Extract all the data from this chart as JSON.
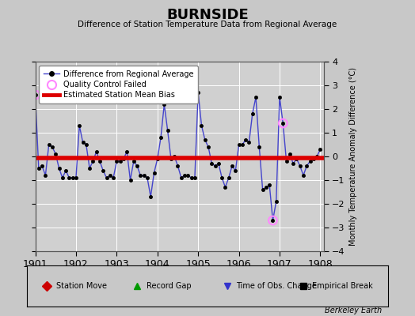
{
  "title": "BURNSIDE",
  "subtitle": "Difference of Station Temperature Data from Regional Average",
  "ylabel_right": "Monthly Temperature Anomaly Difference (°C)",
  "xlim": [
    1901.0,
    1908.083
  ],
  "ylim": [
    -4,
    4
  ],
  "yticks": [
    -4,
    -3,
    -2,
    -1,
    0,
    1,
    2,
    3,
    4
  ],
  "xticks": [
    1901,
    1902,
    1903,
    1904,
    1905,
    1906,
    1907,
    1908
  ],
  "background_color": "#c8c8c8",
  "plot_bg_color": "#d0d0d0",
  "mean_bias": -0.05,
  "line_color": "#4444cc",
  "dot_color": "#000000",
  "bias_color": "#dd0000",
  "qc_fail_color": "#ff88ff",
  "watermark": "Berkeley Earth",
  "times": [
    1901.0,
    1901.0833,
    1901.1667,
    1901.25,
    1901.3333,
    1901.4167,
    1901.5,
    1901.5833,
    1901.6667,
    1901.75,
    1901.8333,
    1901.9167,
    1902.0,
    1902.0833,
    1902.1667,
    1902.25,
    1902.3333,
    1902.4167,
    1902.5,
    1902.5833,
    1902.6667,
    1902.75,
    1902.8333,
    1902.9167,
    1903.0,
    1903.0833,
    1903.1667,
    1903.25,
    1903.3333,
    1903.4167,
    1903.5,
    1903.5833,
    1903.6667,
    1903.75,
    1903.8333,
    1903.9167,
    1904.0,
    1904.0833,
    1904.1667,
    1904.25,
    1904.3333,
    1904.4167,
    1904.5,
    1904.5833,
    1904.6667,
    1904.75,
    1904.8333,
    1904.9167,
    1905.0,
    1905.0833,
    1905.1667,
    1905.25,
    1905.3333,
    1905.4167,
    1905.5,
    1905.5833,
    1905.6667,
    1905.75,
    1905.8333,
    1905.9167,
    1906.0,
    1906.0833,
    1906.1667,
    1906.25,
    1906.3333,
    1906.4167,
    1906.5,
    1906.5833,
    1906.6667,
    1906.75,
    1906.8333,
    1906.9167,
    1907.0,
    1907.0833,
    1907.1667,
    1907.25,
    1907.3333,
    1907.4167,
    1907.5,
    1907.5833,
    1907.6667,
    1907.75,
    1907.8333,
    1907.9167,
    1908.0
  ],
  "values": [
    2.6,
    -0.5,
    -0.4,
    -0.8,
    0.5,
    0.4,
    0.1,
    -0.5,
    -0.9,
    -0.6,
    -0.9,
    -0.9,
    -0.9,
    1.3,
    0.6,
    0.5,
    -0.5,
    -0.2,
    0.2,
    -0.2,
    -0.6,
    -0.9,
    -0.8,
    -0.9,
    -0.2,
    -0.2,
    -0.1,
    0.2,
    -1.0,
    -0.2,
    -0.4,
    -0.8,
    -0.8,
    -0.9,
    -1.7,
    -0.7,
    -0.1,
    0.8,
    2.2,
    1.1,
    -0.1,
    0.0,
    -0.4,
    -0.9,
    -0.8,
    -0.8,
    -0.9,
    -0.9,
    2.7,
    1.3,
    0.7,
    0.4,
    -0.3,
    -0.4,
    -0.3,
    -0.9,
    -1.3,
    -0.9,
    -0.4,
    -0.6,
    0.5,
    0.5,
    0.7,
    0.6,
    1.8,
    2.5,
    0.4,
    -1.4,
    -1.3,
    -1.2,
    -2.7,
    -1.9,
    2.5,
    1.4,
    -0.2,
    0.1,
    -0.3,
    -0.1,
    -0.4,
    -0.8,
    -0.4,
    -0.2,
    -0.1,
    0.0,
    0.3
  ],
  "qc_fail_indices": [
    0,
    70,
    73
  ],
  "bottom_legend": [
    {
      "label": "Station Move",
      "color": "#cc0000",
      "marker": "D"
    },
    {
      "label": "Record Gap",
      "color": "#009900",
      "marker": "^"
    },
    {
      "label": "Time of Obs. Change",
      "color": "#3333cc",
      "marker": "v"
    },
    {
      "label": "Empirical Break",
      "color": "#000000",
      "marker": "s"
    }
  ]
}
